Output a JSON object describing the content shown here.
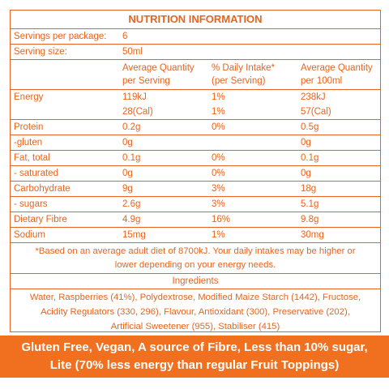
{
  "panel": {
    "title": "NUTRITION INFORMATION",
    "servings_label": "Servings per package:",
    "servings_value": "6",
    "serving_size_label": "Serving size:",
    "serving_size_value": "50ml",
    "headers": {
      "col1_line1": "Average Quantity",
      "col1_line2": "per Serving",
      "col2_line1": "% Daily Intake*",
      "col2_line2": "(per Serving)",
      "col3_line1": "Average Quantity",
      "col3_line2": "per 100ml"
    },
    "rows": [
      {
        "name": "Energy",
        "serv": "119kJ",
        "pct": "1%",
        "per100": "238kJ",
        "serv2": "28(Cal)",
        "pct2": "1%",
        "per100_2": "57(Cal)"
      },
      {
        "name": "Protein",
        "serv": "0.2g",
        "pct": "0%",
        "per100": "0.5g"
      },
      {
        "name": " -gluten",
        "serv": "0g",
        "pct": "",
        "per100": "0g"
      },
      {
        "name": "Fat, total",
        "serv": "0.1g",
        "pct": "0%",
        "per100": "0.1g"
      },
      {
        "name": " - saturated",
        "serv": "0g",
        "pct": "0%",
        "per100": "0g"
      },
      {
        "name": "Carbohydrate",
        "serv": "9g",
        "pct": "3%",
        "per100": "18g"
      },
      {
        "name": " - sugars",
        "serv": "2.6g",
        "pct": "3%",
        "per100": "5.1g"
      },
      {
        "name": "Dietary Fibre",
        "serv": "4.9g",
        "pct": "16%",
        "per100": "9.8g"
      },
      {
        "name": "Sodium",
        "serv": "15mg",
        "pct": "1%",
        "per100": "30mg"
      }
    ],
    "footnote_line1": "*Based on an average adult diet of 8700kJ. Your daily intakes may be higher or",
    "footnote_line2": "lower depending on your energy needs.",
    "ingredients_title": "Ingredients",
    "ingredients_line1": "Water, Raspberries (41%), Polydextrose, Modified Maize Starch (1442), Fructose,",
    "ingredients_line2": "Acidity Regulators (330, 296), Flavour, Antioxidant (300), Preservative (202),",
    "ingredients_line3": "Artificial Sweetener (955), Stabiliser (415)"
  },
  "banner": {
    "line1": "Gluten Free, Vegan, A source of Fibre, Less than 10% sugar,",
    "line2": "Lite (70% less energy than regular Fruit Toppings)"
  },
  "colors": {
    "accent": "#e8641e",
    "banner_bg": "#f07020",
    "banner_text": "#ffffff"
  }
}
